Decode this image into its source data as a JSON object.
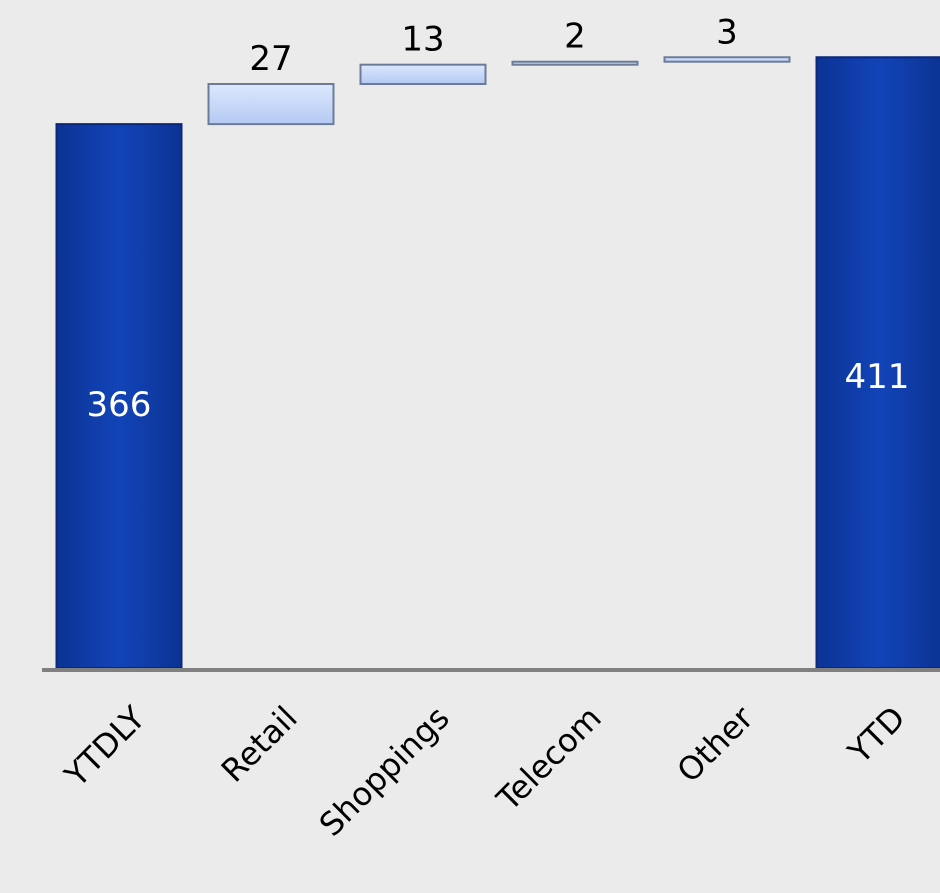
{
  "chart_data": {
    "type": "bar",
    "subtype": "waterfall",
    "title": "",
    "xlabel": "",
    "ylabel": "",
    "categories": [
      "YTDLY",
      "Retail",
      "Shoppings",
      "Telecom",
      "Other",
      "YTD"
    ],
    "values": [
      366,
      27,
      13,
      2,
      3,
      411
    ],
    "kinds": [
      "total",
      "delta",
      "delta",
      "delta",
      "delta",
      "total"
    ],
    "data_labels": [
      "366",
      "27",
      "13",
      "2",
      "3",
      "411"
    ],
    "ylim": [
      0,
      411
    ],
    "grid": false,
    "legend": "none",
    "colors": {
      "background": "#ebebeb",
      "total_bar": "#1040b0",
      "total_bar_edge": "#0a2878",
      "delta_bar": "#c6d8fb",
      "delta_bar_edge": "#6c7c98",
      "axis": "#808080",
      "total_label": "#ffffff",
      "delta_label": "#000000"
    }
  }
}
